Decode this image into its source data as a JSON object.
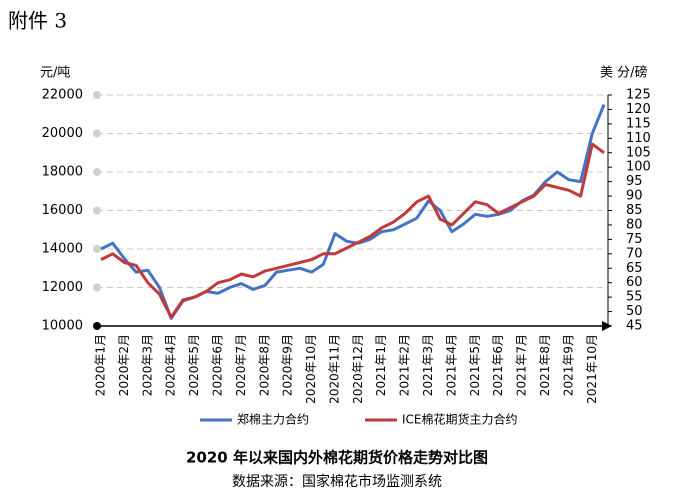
{
  "header": "附件 3",
  "chart_data": {
    "type": "line",
    "title": "2020 年以来国内外棉花期货价格走势对比图",
    "subtitle": "数据来源：国家棉花市场监测系统",
    "y_label": "元/吨",
    "y2_label": "美 分/磅",
    "categories": [
      "2020年1月",
      null,
      "2020年2月",
      null,
      "2020年3月",
      null,
      "2020年4月",
      null,
      "2020年5月",
      null,
      "2020年6月",
      null,
      "2020年7月",
      null,
      "2020年8月",
      null,
      "2020年9月",
      null,
      "2020年10月",
      null,
      "2020年11月",
      null,
      "2020年12月",
      null,
      "2021年1月",
      null,
      "2021年2月",
      null,
      "2021年3月",
      null,
      "2021年4月",
      null,
      "2021年5月",
      null,
      "2021年6月",
      null,
      "2021年7月",
      null,
      "2021年8月",
      null,
      "2021年9月",
      null,
      "2021年10月",
      null
    ],
    "series": [
      {
        "name": "郑棉主力合约",
        "color": "#4472c4",
        "axis": "y",
        "values": [
          14000,
          14300,
          13500,
          12800,
          12900,
          12000,
          10400,
          11300,
          11500,
          11800,
          11700,
          12000,
          12200,
          11900,
          12100,
          12800,
          12900,
          13000,
          12800,
          13200,
          14800,
          14400,
          14300,
          14500,
          14900,
          15000,
          15300,
          15600,
          16500,
          16000,
          14900,
          15300,
          15800,
          15700,
          15800,
          16000,
          16500,
          16800,
          17500,
          18000,
          17600,
          17500,
          20000,
          21500
        ]
      },
      {
        "name": "ICE棉花期货主力合约",
        "color": "#c0393b",
        "axis": "y2",
        "values": [
          68,
          70,
          67,
          66,
          60,
          56,
          48,
          54,
          55,
          57,
          60,
          61,
          63,
          62,
          64,
          65,
          66,
          67,
          68,
          70,
          70,
          72,
          74,
          76,
          79,
          81,
          84,
          88,
          90,
          82,
          80,
          84,
          88,
          87,
          84,
          86,
          88,
          90,
          94,
          93,
          92,
          90,
          108,
          105
        ]
      }
    ],
    "ylim": [
      10000,
      22000
    ],
    "yticks": [
      10000,
      12000,
      14000,
      16000,
      18000,
      20000,
      22000
    ],
    "y2lim": [
      45,
      125
    ],
    "y2ticks": [
      45,
      50,
      55,
      60,
      65,
      70,
      75,
      80,
      85,
      90,
      95,
      100,
      105,
      110,
      115,
      120,
      125
    ],
    "grid": true
  }
}
